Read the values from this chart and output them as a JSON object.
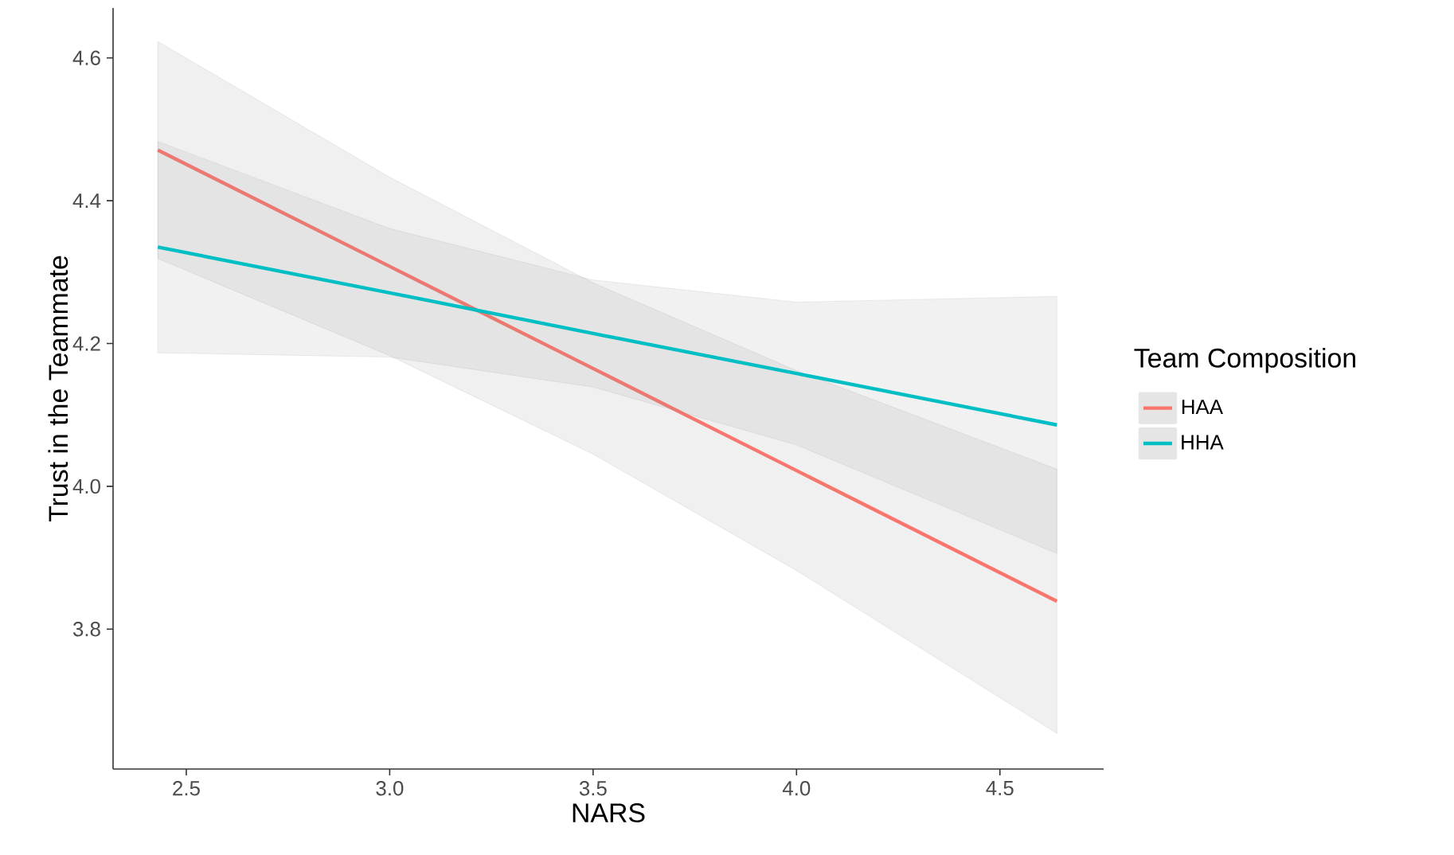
{
  "chart_data": {
    "type": "line",
    "xlabel": "NARS",
    "ylabel": "Trust in the Teammate",
    "legend_title": "Team Composition",
    "legend": "right",
    "grid": false,
    "line_style": "solid",
    "marker": "none",
    "xlim": [
      2.32,
      4.755
    ],
    "ylim": [
      3.604,
      4.67
    ],
    "xticks": [
      {
        "value": 2.5,
        "label": "2.5"
      },
      {
        "value": 3,
        "label": "3.0"
      },
      {
        "value": 3.5,
        "label": "3.5"
      },
      {
        "value": 4,
        "label": "4.0"
      },
      {
        "value": 4.5,
        "label": "4.5"
      }
    ],
    "yticks": [
      {
        "value": 3.8,
        "label": "3.8"
      },
      {
        "value": 4,
        "label": "4.0"
      },
      {
        "value": 4.2,
        "label": "4.2"
      },
      {
        "value": 4.4,
        "label": "4.4"
      },
      {
        "value": 4.6,
        "label": "4.6"
      }
    ],
    "series": [
      {
        "name": "HAA",
        "color": "#f8766d",
        "x": [
          2.43,
          3.0,
          3.5,
          4.0,
          4.64
        ],
        "values": [
          4.471,
          4.308,
          4.165,
          4.022,
          3.839
        ],
        "lower": [
          4.319,
          4.183,
          4.045,
          3.882,
          3.654
        ],
        "upper": [
          4.623,
          4.433,
          4.285,
          4.162,
          4.024
        ]
      },
      {
        "name": "HHA",
        "color": "#00bfc4",
        "x": [
          2.43,
          3.0,
          3.5,
          4.0,
          4.64
        ],
        "values": [
          4.335,
          4.271,
          4.214,
          4.158,
          4.086
        ],
        "lower": [
          4.187,
          4.181,
          4.139,
          4.058,
          3.906
        ],
        "upper": [
          4.483,
          4.361,
          4.289,
          4.258,
          4.266
        ]
      }
    ]
  }
}
